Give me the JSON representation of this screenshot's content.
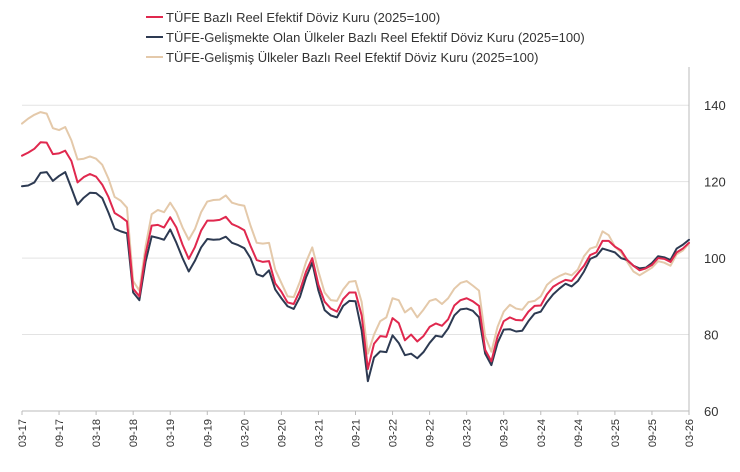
{
  "chart_data": {
    "type": "line",
    "title": "",
    "xlabel": "",
    "ylabel": "",
    "ylim": [
      60,
      150
    ],
    "y_ticks": [
      60,
      80,
      100,
      120,
      140
    ],
    "grid": true,
    "legend_position": "top-left",
    "x_start": "03-17",
    "x_end": "03-26",
    "x_tick_labels": [
      "03-17",
      "09-17",
      "03-18",
      "09-18",
      "03-19",
      "09-19",
      "03-20",
      "09-20",
      "03-21",
      "09-21",
      "03-22",
      "09-22",
      "03-23",
      "09-23",
      "03-24",
      "09-24",
      "03-25",
      "09-25",
      "03-26"
    ],
    "series": [
      {
        "name": "TÜFE  Bazlı Reel Efektif Döviz Kuru (2025=100)",
        "color": "#e0284e",
        "values": [
          126.8,
          127.6,
          128.6,
          130.3,
          130.2,
          127.2,
          127.4,
          128.1,
          125.4,
          119.8,
          121.2,
          122.0,
          121.3,
          119.2,
          116.0,
          111.8,
          110.8,
          109.6,
          92.0,
          90.0,
          101.0,
          108.5,
          108.7,
          108.0,
          110.7,
          108.0,
          103.5,
          99.8,
          102.9,
          107.2,
          109.8,
          109.8,
          110.0,
          110.8,
          108.9,
          108.2,
          107.3,
          103.2,
          99.5,
          99.0,
          99.2,
          93.4,
          91.2,
          88.4,
          88.0,
          91.5,
          96.5,
          100.0,
          93.0,
          88.6,
          86.8,
          86.0,
          89.3,
          91.0,
          91.0,
          85.0,
          71.0,
          77.6,
          79.6,
          79.4,
          84.3,
          83.0,
          78.5,
          80.0,
          78.2,
          79.6,
          82.0,
          82.9,
          82.3,
          84.0,
          87.6,
          89.0,
          89.5,
          88.7,
          87.5,
          76.0,
          73.0,
          79.5,
          83.5,
          84.5,
          83.8,
          83.7,
          86.0,
          87.5,
          87.6,
          90.5,
          92.5,
          93.5,
          94.3,
          94.0,
          96.0,
          98.0,
          100.8,
          101.5,
          104.5,
          104.5,
          103.0,
          102.0,
          99.5,
          98.0,
          96.8,
          97.3,
          98.2,
          100.0,
          99.8,
          99.0,
          101.5,
          102.5,
          104.0
        ]
      },
      {
        "name": "TÜFE-Gelişmekte Olan Ülkeler Bazlı Reel Efektif Döviz Kuru (2025=100)",
        "color": "#2d3a52",
        "values": [
          118.8,
          119.0,
          119.8,
          122.3,
          122.5,
          120.2,
          121.5,
          122.5,
          118.3,
          114.0,
          115.8,
          117.1,
          117.0,
          115.7,
          111.9,
          107.7,
          107.0,
          106.5,
          91.0,
          89.0,
          99.0,
          105.7,
          105.3,
          104.8,
          107.5,
          104.0,
          100.0,
          96.5,
          99.3,
          102.8,
          105.0,
          104.8,
          104.9,
          105.6,
          104.0,
          103.4,
          102.6,
          100.0,
          95.8,
          95.2,
          96.8,
          91.8,
          89.5,
          87.4,
          86.7,
          89.8,
          95.0,
          98.8,
          91.5,
          86.4,
          85.0,
          84.5,
          87.5,
          88.8,
          88.7,
          81.0,
          67.8,
          74.0,
          75.6,
          75.4,
          79.8,
          77.8,
          74.6,
          75.0,
          73.8,
          75.4,
          77.8,
          79.7,
          79.4,
          81.6,
          85.0,
          86.6,
          86.8,
          86.2,
          84.5,
          75.0,
          72.0,
          77.8,
          81.3,
          81.4,
          80.8,
          81.0,
          83.5,
          85.5,
          86.0,
          88.5,
          90.5,
          92.0,
          93.3,
          92.6,
          94.0,
          96.5,
          99.8,
          100.5,
          102.5,
          102.0,
          101.5,
          100.0,
          99.5,
          98.0,
          97.3,
          97.5,
          98.7,
          100.5,
          100.2,
          99.5,
          102.5,
          103.5,
          104.8
        ]
      },
      {
        "name": "TÜFE-Gelişmiş Ülkeler Bazlı Reel Efektif Döviz Kuru (2025=100)",
        "color": "#e4c9aa",
        "values": [
          135.2,
          136.5,
          137.5,
          138.2,
          137.8,
          134.0,
          133.5,
          134.3,
          130.8,
          125.8,
          126.0,
          126.6,
          126.0,
          124.4,
          120.8,
          116.0,
          115.0,
          113.2,
          94.0,
          91.5,
          103.0,
          111.5,
          112.6,
          112.0,
          114.5,
          112.0,
          108.0,
          104.8,
          107.6,
          112.0,
          114.8,
          115.2,
          115.3,
          116.4,
          114.5,
          114.0,
          113.7,
          108.5,
          104.0,
          103.8,
          104.0,
          97.0,
          93.5,
          90.0,
          89.8,
          93.8,
          99.0,
          102.8,
          96.5,
          91.0,
          89.0,
          88.8,
          91.8,
          93.8,
          94.0,
          88.5,
          75.0,
          80.0,
          83.5,
          84.5,
          89.5,
          89.0,
          85.8,
          87.0,
          84.5,
          86.5,
          88.8,
          89.3,
          88.0,
          89.5,
          92.0,
          93.5,
          94.0,
          92.8,
          91.5,
          79.5,
          75.5,
          82.0,
          86.0,
          87.8,
          86.8,
          86.5,
          88.5,
          88.8,
          90.0,
          93.0,
          94.4,
          95.3,
          96.0,
          95.5,
          97.0,
          100.5,
          102.5,
          103.0,
          107.0,
          106.0,
          103.0,
          101.5,
          99.0,
          96.5,
          95.5,
          96.5,
          97.5,
          99.2,
          98.8,
          98.0,
          101.0,
          102.0,
          103.8
        ]
      }
    ]
  }
}
